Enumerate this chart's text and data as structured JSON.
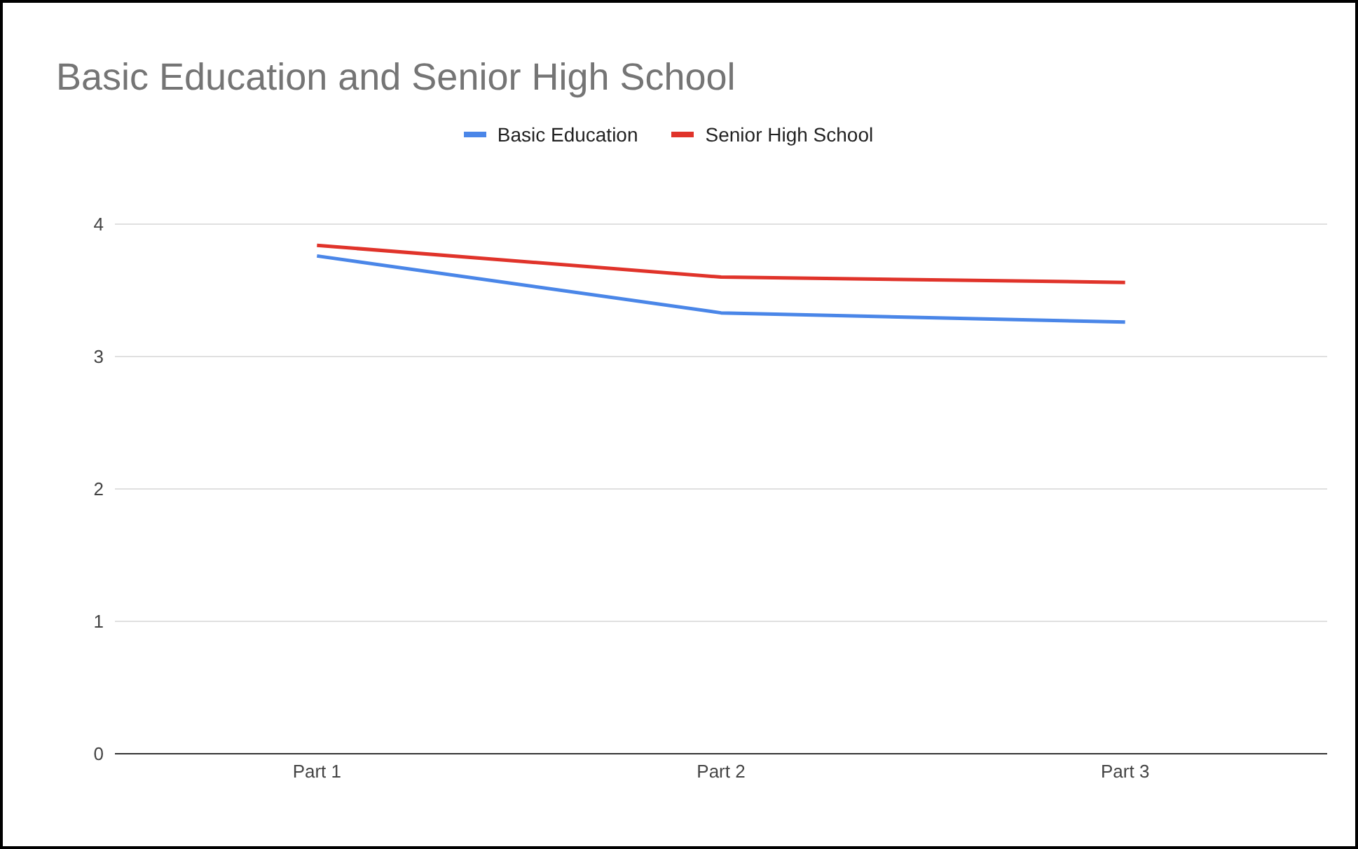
{
  "chart_data": {
    "type": "line",
    "title": "Basic Education and Senior High School",
    "categories": [
      "Part 1",
      "Part 2",
      "Part 3"
    ],
    "series": [
      {
        "name": "Basic Education",
        "color": "#4a86e8",
        "values": [
          3.76,
          3.33,
          3.26
        ]
      },
      {
        "name": "Senior High School",
        "color": "#e0332a",
        "values": [
          3.84,
          3.6,
          3.56
        ]
      }
    ],
    "ylim": [
      0,
      4
    ],
    "yticks": [
      0,
      1,
      2,
      3,
      4
    ],
    "grid": "y",
    "legend": "top",
    "marker": "none"
  }
}
